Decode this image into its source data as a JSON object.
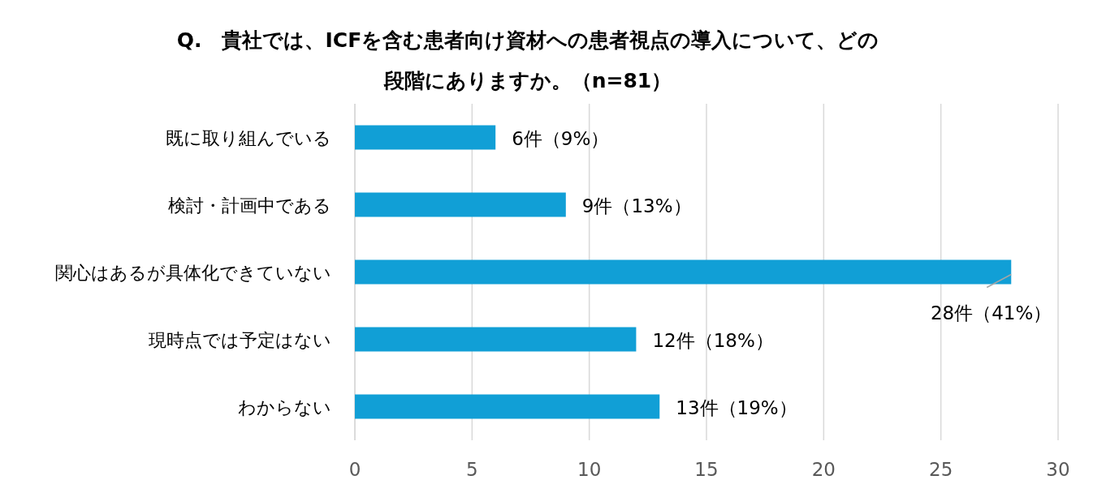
{
  "chart_data": {
    "type": "bar",
    "orientation": "horizontal",
    "title": "Q.　貴社では、ICFを含む患者向け資材への患者視点の導入について、どの段階にありますか。（n=81）",
    "categories": [
      "既に取り組んでいる",
      "検討・計画中である",
      "関心はあるが具体化できていない",
      "現時点では予定はない",
      "わからない"
    ],
    "values": [
      6,
      9,
      28,
      12,
      13
    ],
    "value_labels": [
      "6件（9%）",
      "9件（13%）",
      "28件（41%）",
      "12件（18%）",
      "13件（19%）"
    ],
    "color": "#119fd6",
    "xlim": [
      0,
      30
    ],
    "xticks": [
      0,
      5,
      10,
      15,
      20,
      25,
      30
    ],
    "grid": "x"
  }
}
